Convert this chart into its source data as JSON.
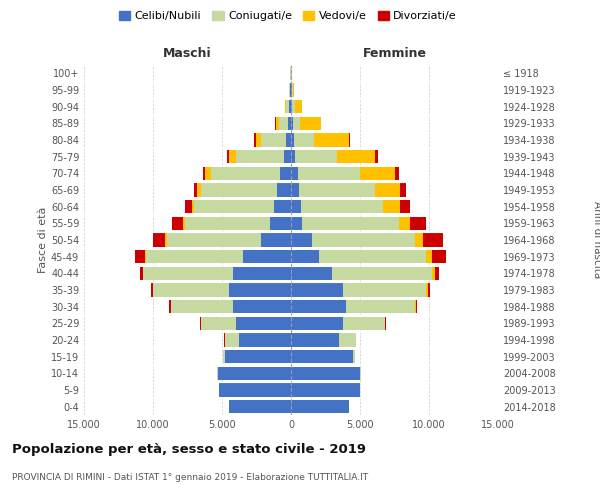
{
  "age_groups": [
    "0-4",
    "5-9",
    "10-14",
    "15-19",
    "20-24",
    "25-29",
    "30-34",
    "35-39",
    "40-44",
    "45-49",
    "50-54",
    "55-59",
    "60-64",
    "65-69",
    "70-74",
    "75-79",
    "80-84",
    "85-89",
    "90-94",
    "95-99",
    "100+"
  ],
  "birth_years": [
    "2014-2018",
    "2009-2013",
    "2004-2008",
    "1999-2003",
    "1994-1998",
    "1989-1993",
    "1984-1988",
    "1979-1983",
    "1974-1978",
    "1969-1973",
    "1964-1968",
    "1959-1963",
    "1954-1958",
    "1949-1953",
    "1944-1948",
    "1939-1943",
    "1934-1938",
    "1929-1933",
    "1924-1928",
    "1919-1923",
    "≤ 1918"
  ],
  "maschi": {
    "celibi": [
      4500,
      5200,
      5300,
      4800,
      3800,
      4000,
      4200,
      4500,
      4200,
      3500,
      2200,
      1500,
      1200,
      1000,
      800,
      500,
      350,
      250,
      150,
      80,
      30
    ],
    "coniugati": [
      10,
      20,
      50,
      100,
      1000,
      2500,
      4500,
      5500,
      6500,
      7000,
      6800,
      6200,
      5800,
      5500,
      5000,
      3500,
      1800,
      600,
      200,
      60,
      20
    ],
    "vedovi": [
      0,
      0,
      0,
      0,
      5,
      10,
      20,
      30,
      50,
      80,
      100,
      150,
      200,
      300,
      400,
      500,
      400,
      250,
      100,
      30,
      5
    ],
    "divorziati": [
      0,
      0,
      0,
      10,
      20,
      50,
      100,
      100,
      200,
      700,
      900,
      800,
      500,
      250,
      200,
      150,
      100,
      40,
      20,
      10,
      2
    ]
  },
  "femmine": {
    "nubili": [
      4200,
      5000,
      5000,
      4500,
      3500,
      3800,
      4000,
      3800,
      3000,
      2000,
      1500,
      800,
      700,
      600,
      500,
      300,
      200,
      150,
      100,
      80,
      30
    ],
    "coniugate": [
      10,
      20,
      50,
      150,
      1200,
      3000,
      5000,
      6000,
      7200,
      7800,
      7500,
      7000,
      6000,
      5500,
      4500,
      3000,
      1500,
      500,
      180,
      50,
      15
    ],
    "vedove": [
      0,
      0,
      0,
      5,
      10,
      30,
      50,
      100,
      200,
      400,
      600,
      800,
      1200,
      1800,
      2500,
      2800,
      2500,
      1500,
      500,
      80,
      10
    ],
    "divorziate": [
      0,
      0,
      0,
      5,
      20,
      50,
      100,
      200,
      350,
      1000,
      1400,
      1200,
      700,
      400,
      350,
      200,
      100,
      50,
      20,
      10,
      2
    ]
  },
  "colors": {
    "celibi": "#4472c4",
    "coniugati": "#c5d9a0",
    "vedovi": "#ffc000",
    "divorziati": "#cc0000"
  },
  "xlim": 15000,
  "title": "Popolazione per età, sesso e stato civile - 2019",
  "subtitle": "PROVINCIA DI RIMINI - Dati ISTAT 1° gennaio 2019 - Elaborazione TUTTITALIA.IT",
  "legend_labels": [
    "Celibi/Nubili",
    "Coniugati/e",
    "Vedovi/e",
    "Divorziati/e"
  ],
  "maschi_label": "Maschi",
  "femmine_label": "Femmine",
  "fasce_label": "Fasce di età",
  "anni_label": "Anni di nascita"
}
